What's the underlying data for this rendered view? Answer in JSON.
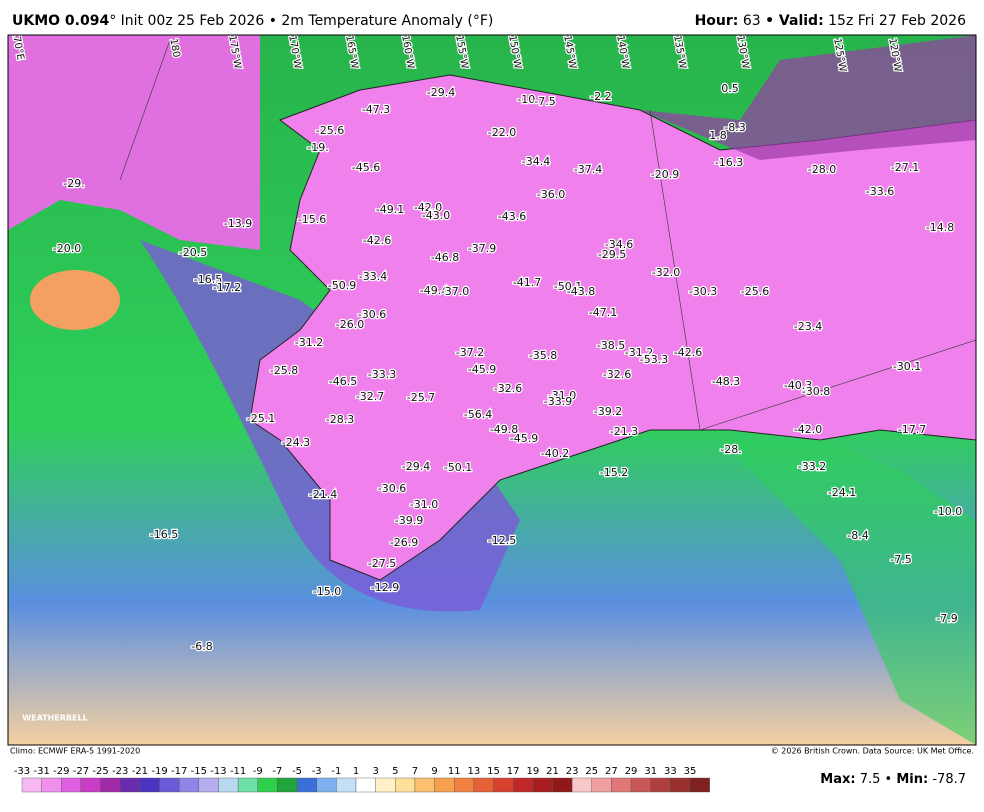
{
  "header": {
    "model": "UKMO 0.094",
    "title": "° Init 00z 25 Feb 2026 • 2m Temperature Anomaly (°F)",
    "hour_label": "Hour:",
    "hour": "63",
    "valid_label": "• Valid:",
    "valid": "15z Fri 27 Feb 2026"
  },
  "map": {
    "longitude_labels": [
      "170°E",
      "180",
      "175°W",
      "170°W",
      "165°W",
      "160°W",
      "155°W",
      "150°W",
      "145°W",
      "140°W",
      "135°W",
      "130°W",
      "125°W",
      "120°W"
    ],
    "point_labels": [
      "-29.4",
      "-10.",
      "-7.5",
      "-2.2",
      "-47.3",
      "-22.0",
      "-25.6",
      "-19.",
      "-45.6",
      "-34.4",
      "-37.4",
      "-20.9",
      "-16.3",
      "-28.0",
      "-27.1",
      "-36.0",
      "-49.1",
      "-42.0",
      "-43.0",
      "-43.6",
      "-15.6",
      "-13.9",
      "-42.6",
      "-34.6",
      "-29.5",
      "-37.9",
      "-46.8",
      "-20.0",
      "-20.5",
      "-32.0",
      "-16.5",
      "-17.2",
      "-33.4",
      "-41.7",
      "-50.1",
      "-43.8",
      "-49.4",
      "-37.0",
      "-50.9",
      "-30.3",
      "-25.6",
      "-30.6",
      "-26.0",
      "-47.1",
      "-23.4",
      "-31.2",
      "-38.5",
      "-31.2",
      "-53.3",
      "-42.6",
      "-37.2",
      "-35.8",
      "-45.9",
      "-25.8",
      "-46.5",
      "-33.3",
      "-32.6",
      "-48.3",
      "-40.3",
      "-30.1",
      "-32.6",
      "-32.7",
      "-25.7",
      "-30.8",
      "-56.4",
      "-31.0",
      "-33.9",
      "-39.2",
      "-25.1",
      "-28.3",
      "-49.8",
      "-45.9",
      "-21.3",
      "-42.0",
      "-17.7",
      "-24.3",
      "-40.2",
      "-28.",
      "-29.4",
      "-50.1",
      "-15.2",
      "-33.2",
      "-21.4",
      "-30.6",
      "-24.1",
      "-31.0",
      "-39.9",
      "-10.0",
      "-16.5",
      "-26.9",
      "-12.5",
      "-8.4",
      "-27.5",
      "-7.5",
      "-12.9",
      "-15.0",
      "-7.9",
      "-6.8",
      "-29.",
      "0.5",
      "-8.3",
      "1.8",
      "-33.6",
      "-14.8"
    ],
    "logo": "WEATHERBELL"
  },
  "footer": {
    "climo": "Climo: ECMWF ERA-5 1991-2020",
    "copyright": "© 2026 British Crown. Data Source: UK Met Office.",
    "colorbar": {
      "ticks": [
        -33,
        -31,
        -29,
        -27,
        -25,
        -23,
        -21,
        -19,
        -17,
        -15,
        -13,
        -11,
        -9,
        -7,
        -5,
        -3,
        -1,
        1,
        3,
        5,
        7,
        9,
        11,
        13,
        15,
        17,
        19,
        21,
        23,
        25,
        27,
        29,
        31,
        33,
        35
      ],
      "colors": [
        "#f7b8f2",
        "#f090ec",
        "#e05ee0",
        "#c83cc8",
        "#a02aa8",
        "#6a2cae",
        "#4a35c2",
        "#6a5ad8",
        "#8f85e6",
        "#b4aeee",
        "#b8d8f0",
        "#6fe0a8",
        "#2ecf4a",
        "#1fa53a",
        "#3b6fd8",
        "#7fb0ee",
        "#c4e0f8",
        "#ffffff",
        "#fff0c8",
        "#fde09a",
        "#fbc070",
        "#f7a050",
        "#f28040",
        "#e66038",
        "#d84030",
        "#c02828",
        "#a81e20",
        "#901818",
        "#f8c8c8",
        "#f0a0a0",
        "#e07878",
        "#c85858",
        "#b04040",
        "#983030",
        "#802020"
      ]
    },
    "max_label": "Max:",
    "max": "7.5",
    "separator": "•",
    "min_label": "Min:",
    "min": "-78.7"
  }
}
